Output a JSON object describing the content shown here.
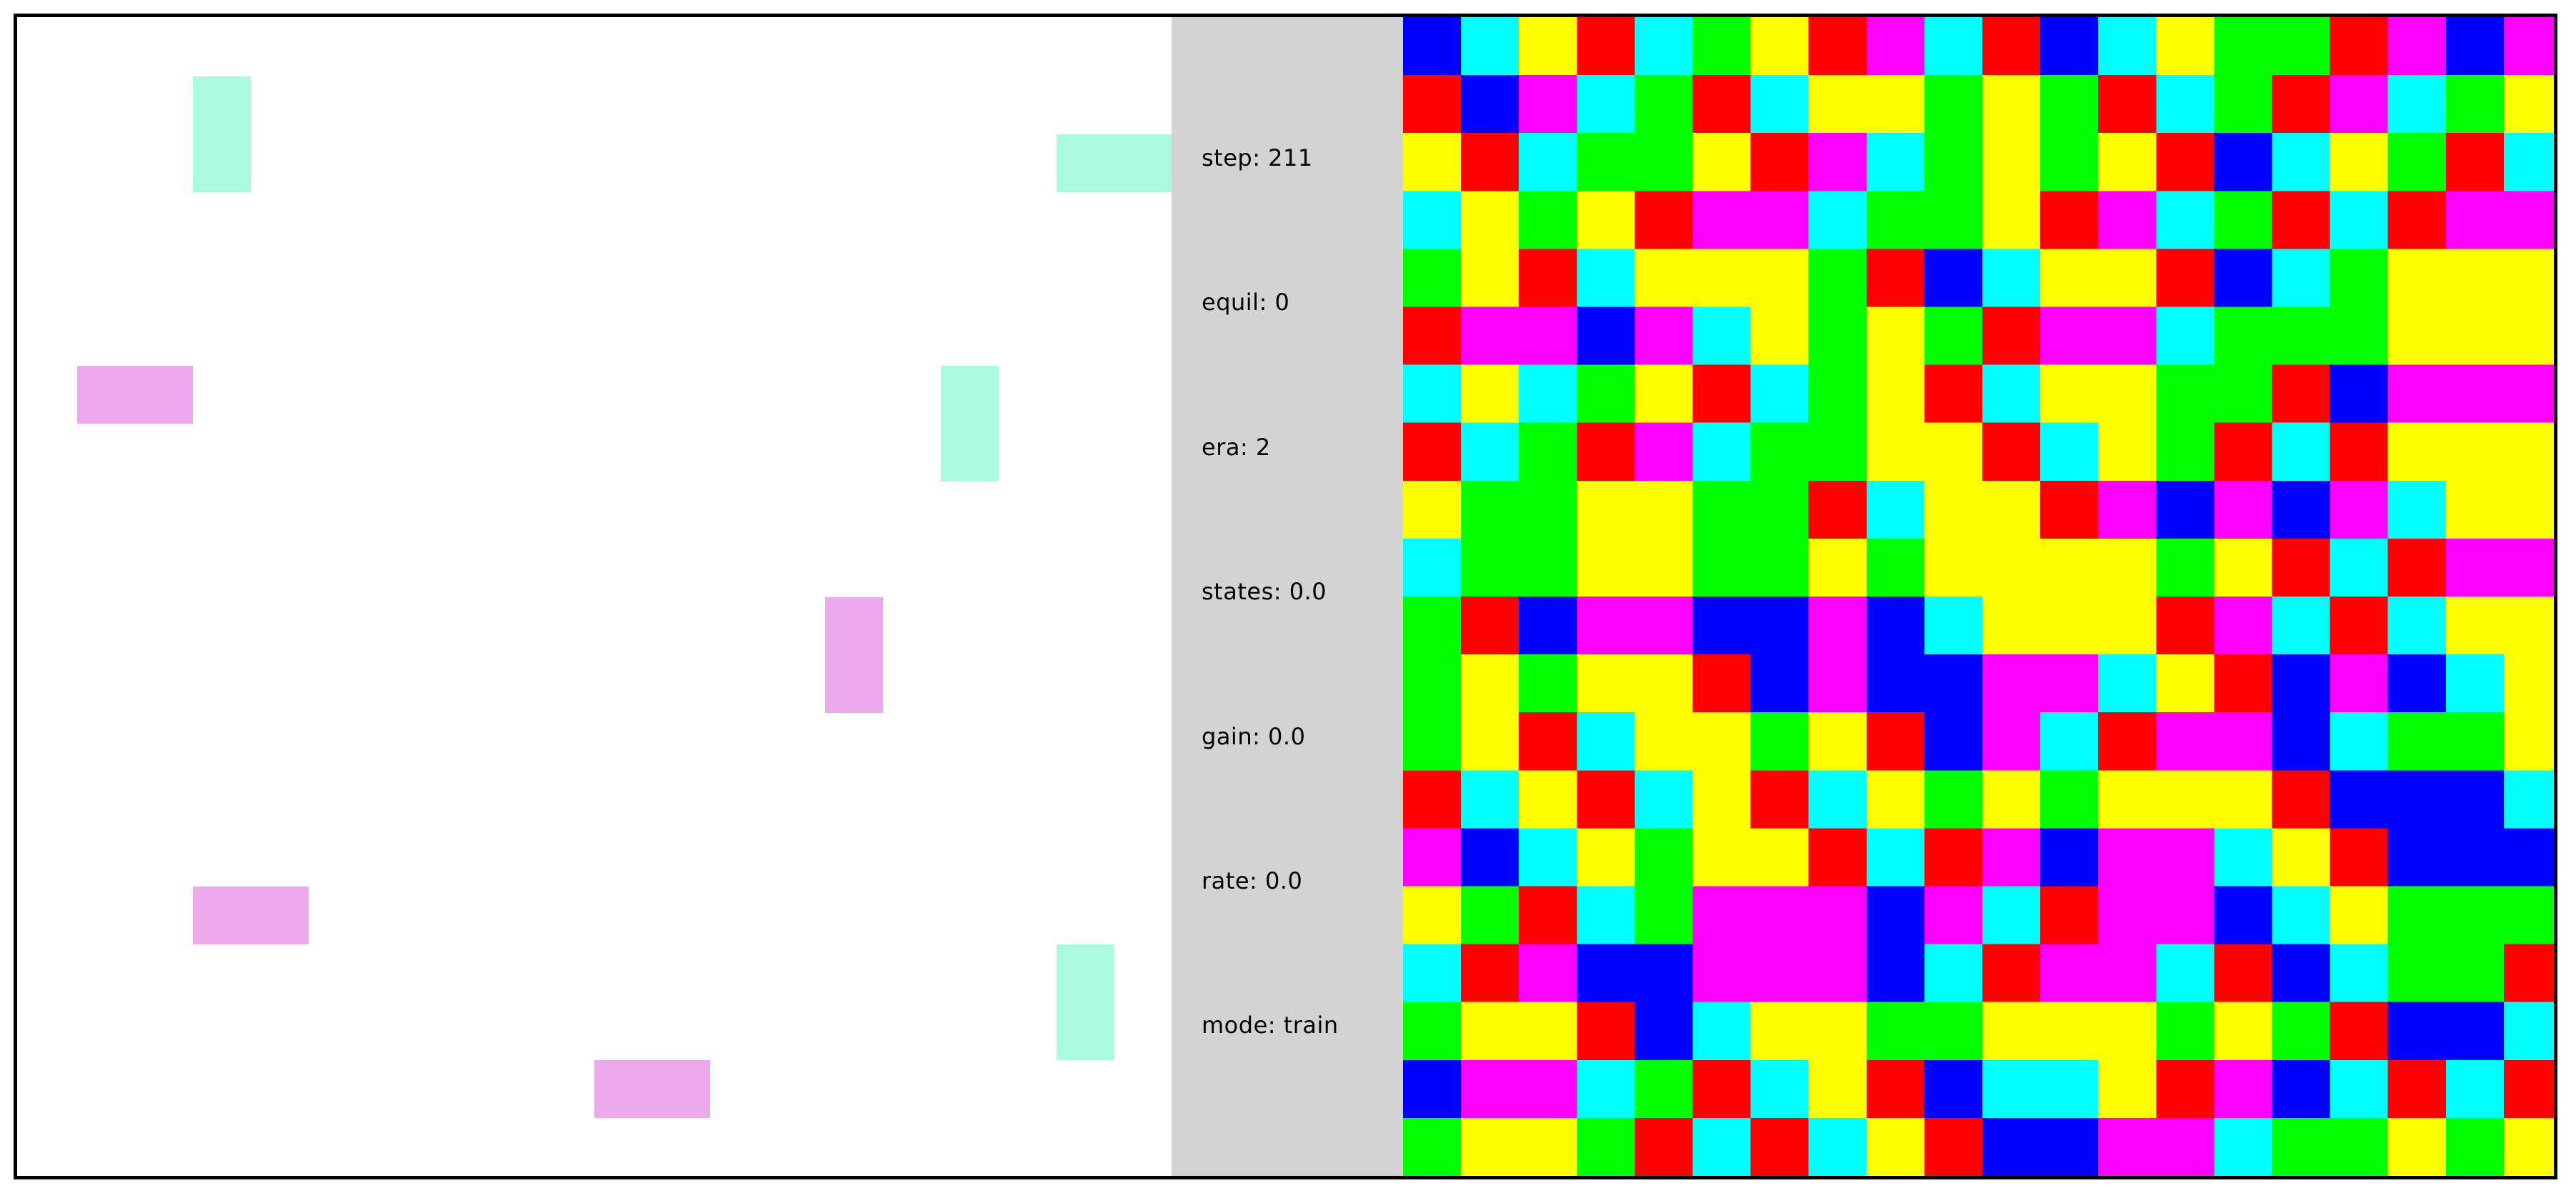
{
  "stats": {
    "step": "step: 211",
    "equil": "equil: 0",
    "era": "era: 2",
    "states": "states: 0.0",
    "gain": "gain: 0.0",
    "rate": "rate: 0.0",
    "mode": "mode: train"
  },
  "colors": {
    "arena_background": "#ffffff",
    "panel_background": "#d3d3d3",
    "frame_border": "#000000",
    "teal_block": "#aafce0",
    "pink_block": "#eea8ec"
  },
  "grid_palette": {
    "B": "#0000ff",
    "C": "#00ffff",
    "Y": "#ffff00",
    "R": "#ff0000",
    "M": "#ff00ff",
    "G": "#00ff00"
  },
  "grid_rows": [
    "BCYRCGYRMCRBCYGGRMBM",
    "RBMCGRCYYGYGRCGRMCGY",
    "YRCGGYRMCGYGYRBCYGRC",
    "CYGYRMMCGGYRMCGRCRMM",
    "GYRCYYYGRBCYYRBCGYYY",
    "RMMBMCYGYGRMMCGGGYYY",
    "CYCGYRCGYRCYYGGRBMMM",
    "RCGRMCGGYYRCYGRCRYYY",
    "YGGYYGGRCYYRMBMBMCYY",
    "CGGYYGGYGYYYYGYRCRMM",
    "GRBMMBBMBCYYYRMCRCYY",
    "GYGYYRBMBBMMCYRBMBCY",
    "GYRCYYGYRBMCRMMBCGGY",
    "RCYRCYRCYGYGYYYRBBBC",
    "MBCYGYYRCRMBMMCYRBBB",
    "YGRCGMMMBMCRMMBCYGGG",
    "CRMBBMMMBCRMMCRBCGGR",
    "GYYRBCYYGGYYYGYGRBBC",
    "BMMCGRCYRBCCYRMBCRCR",
    "GYYGRCRCYRBBMMCGGYGY"
  ]
}
